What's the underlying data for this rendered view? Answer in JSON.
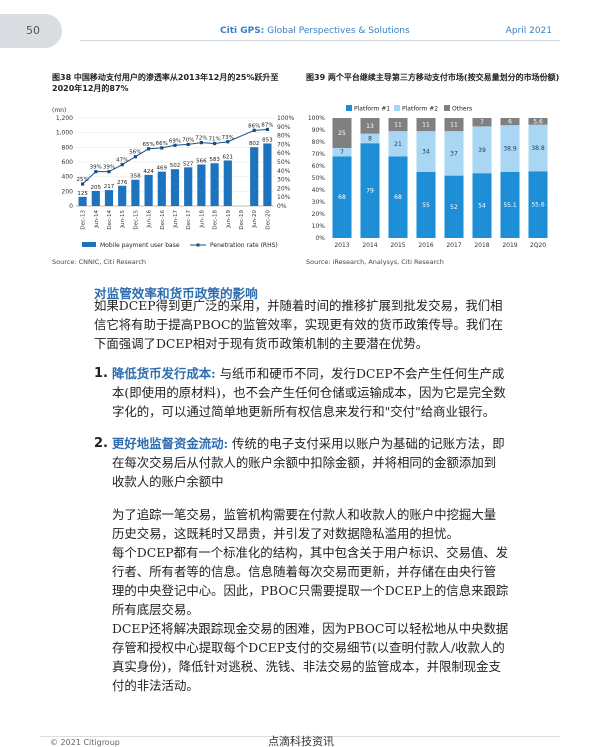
{
  "header": {
    "page_number": "50",
    "brand": "Citi GPS:",
    "subtitle": "Global Perspectives & Solutions",
    "date": "April 2021"
  },
  "chart_data": [
    {
      "type": "bar",
      "title": "图38 中国移动支付用户的渗透率从2013年12月的25%跃升至2020年12月的87%",
      "ylabel": "(mn)",
      "categories": [
        "Dec-13",
        "Jun-14",
        "Dec-14",
        "Jun-15",
        "Dec-15",
        "Jun-16",
        "Dec-16",
        "Jun-17",
        "Dec-17",
        "Jun-18",
        "Dec-18",
        "Jun-19",
        "Dec-19",
        "Jun-20",
        "Dec-20"
      ],
      "series": [
        {
          "name": "Mobile payment user base",
          "values": [
            125,
            205,
            217,
            276,
            358,
            424,
            469,
            502,
            527,
            566,
            583,
            621,
            0,
            802,
            853
          ],
          "labels": [
            "125",
            "205",
            "217",
            "276",
            "358",
            "424",
            "469",
            "502",
            "527",
            "566",
            "583",
            "621",
            "",
            "802",
            "853"
          ]
        },
        {
          "name": "Penetration rate (RHS)",
          "values": [
            25,
            39,
            39,
            47,
            56,
            65,
            66,
            69,
            70,
            72,
            71,
            73,
            0,
            86,
            87
          ],
          "labels": [
            "25%",
            "39%",
            "39%",
            "47%",
            "56%",
            "65%",
            "66%",
            "69%",
            "70%",
            "72%",
            "71%",
            "73%",
            "",
            "86%",
            "87%"
          ]
        }
      ],
      "ylim": [
        0,
        1200
      ],
      "yticks": [
        "0",
        "200",
        "400",
        "600",
        "800",
        "1,000",
        "1,200"
      ],
      "y2lim": [
        0,
        100
      ],
      "y2ticks": [
        "0%",
        "10%",
        "20%",
        "30%",
        "40%",
        "50%",
        "60%",
        "70%",
        "80%",
        "90%",
        "100%"
      ],
      "source": "Source: CNNIC, Citi Research"
    },
    {
      "type": "bar",
      "stacked": true,
      "title": "图39 两个平台继续主导第三方移动支付市场(按交易量划分的市场份额)",
      "categories": [
        "2013",
        "2014",
        "2015",
        "2016",
        "2017",
        "2018",
        "2019",
        "2Q20"
      ],
      "series": [
        {
          "name": "Platform #1",
          "values": [
            68,
            79,
            68,
            55,
            52,
            54,
            55.1,
            55.6
          ],
          "labels": [
            "68",
            "79",
            "68",
            "55",
            "52",
            "54",
            "55.1",
            "55.6"
          ],
          "color": "#1e8fd6"
        },
        {
          "name": "Platform #2",
          "values": [
            7,
            8,
            21,
            34,
            37,
            39,
            38.9,
            38.8
          ],
          "labels": [
            "7",
            "8",
            "21",
            "34",
            "37",
            "39",
            "38.9",
            "38.8"
          ],
          "color": "#a9d6f2"
        },
        {
          "name": "Others",
          "values": [
            25,
            13,
            11,
            11,
            11,
            7,
            6,
            5.6
          ],
          "labels": [
            "25",
            "13",
            "11",
            "11",
            "11",
            "7",
            "6",
            "5.6"
          ],
          "color": "#808080"
        }
      ],
      "ylim": [
        0,
        100
      ],
      "yticks": [
        "0%",
        "10%",
        "20%",
        "30%",
        "40%",
        "50%",
        "60%",
        "70%",
        "80%",
        "90%",
        "100%"
      ],
      "source": "Source: iResearch, Analysys, Citi Research"
    }
  ],
  "body": {
    "heading": "对监管效率和货币政策的影响",
    "intro": [
      "如果DCEP得到更广泛的采用，并随着时间的推移扩展到批发交易，我们相",
      "信它将有助于提高PBOC的监管效率，实现更有效的货币政策传导。我们在",
      "下面强调了DCEP相对于现有货币政策机制的主要潜在优势。"
    ],
    "item1_num": "1.",
    "item1_term": "降低货币发行成本:",
    "item1_lines": [
      " 与纸币和硬币不同，发行DCEP不会产生任何生产成",
      "本(即使用的原材料)，也不会产生任何仓储或运输成本，因为它是完全数",
      "字化的，可以通过简单地更新所有权信息来发行和\"交付\"给商业银行。"
    ],
    "item2_num": "2.",
    "item2_term": "更好地监督资金流动:",
    "item2_lines": [
      " 传统的电子支付采用以账户为基础的记账方法，即",
      "在每次交易后从付款人的账户余额中扣除金额，并将相同的金额添加到",
      "收款人的账户余额中"
    ],
    "para3": [
      "为了追踪一笔交易，监管机构需要在付款人和收款人的账户中挖掘大量",
      "历史交易，这既耗时又昂贵，并引发了对数据隐私滥用的担忧。",
      "每个DCEP都有一个标准化的结构，其中包含关于用户标识、交易值、发",
      "行者、所有者等的信息。信息随着每次交易而更新，并存储在由央行管",
      "理的中央登记中心。因此，PBOC只需要提取一个DCEP上的信息来跟踪",
      "所有底层交易。",
      "DCEP还将解决跟踪现金交易的困难，因为PBOC可以轻松地从中央数据",
      "存管和授权中心提取每个DCEP支付的交易细节(以查明付款人/收款人的",
      "真实身份)，降低针对逃税、洗钱、非法交易的监管成本，并限制现金支",
      "付的非法活动。"
    ]
  },
  "footer": {
    "copyright": "© 2021 Citigroup",
    "watermark": "点滴科技资讯"
  }
}
